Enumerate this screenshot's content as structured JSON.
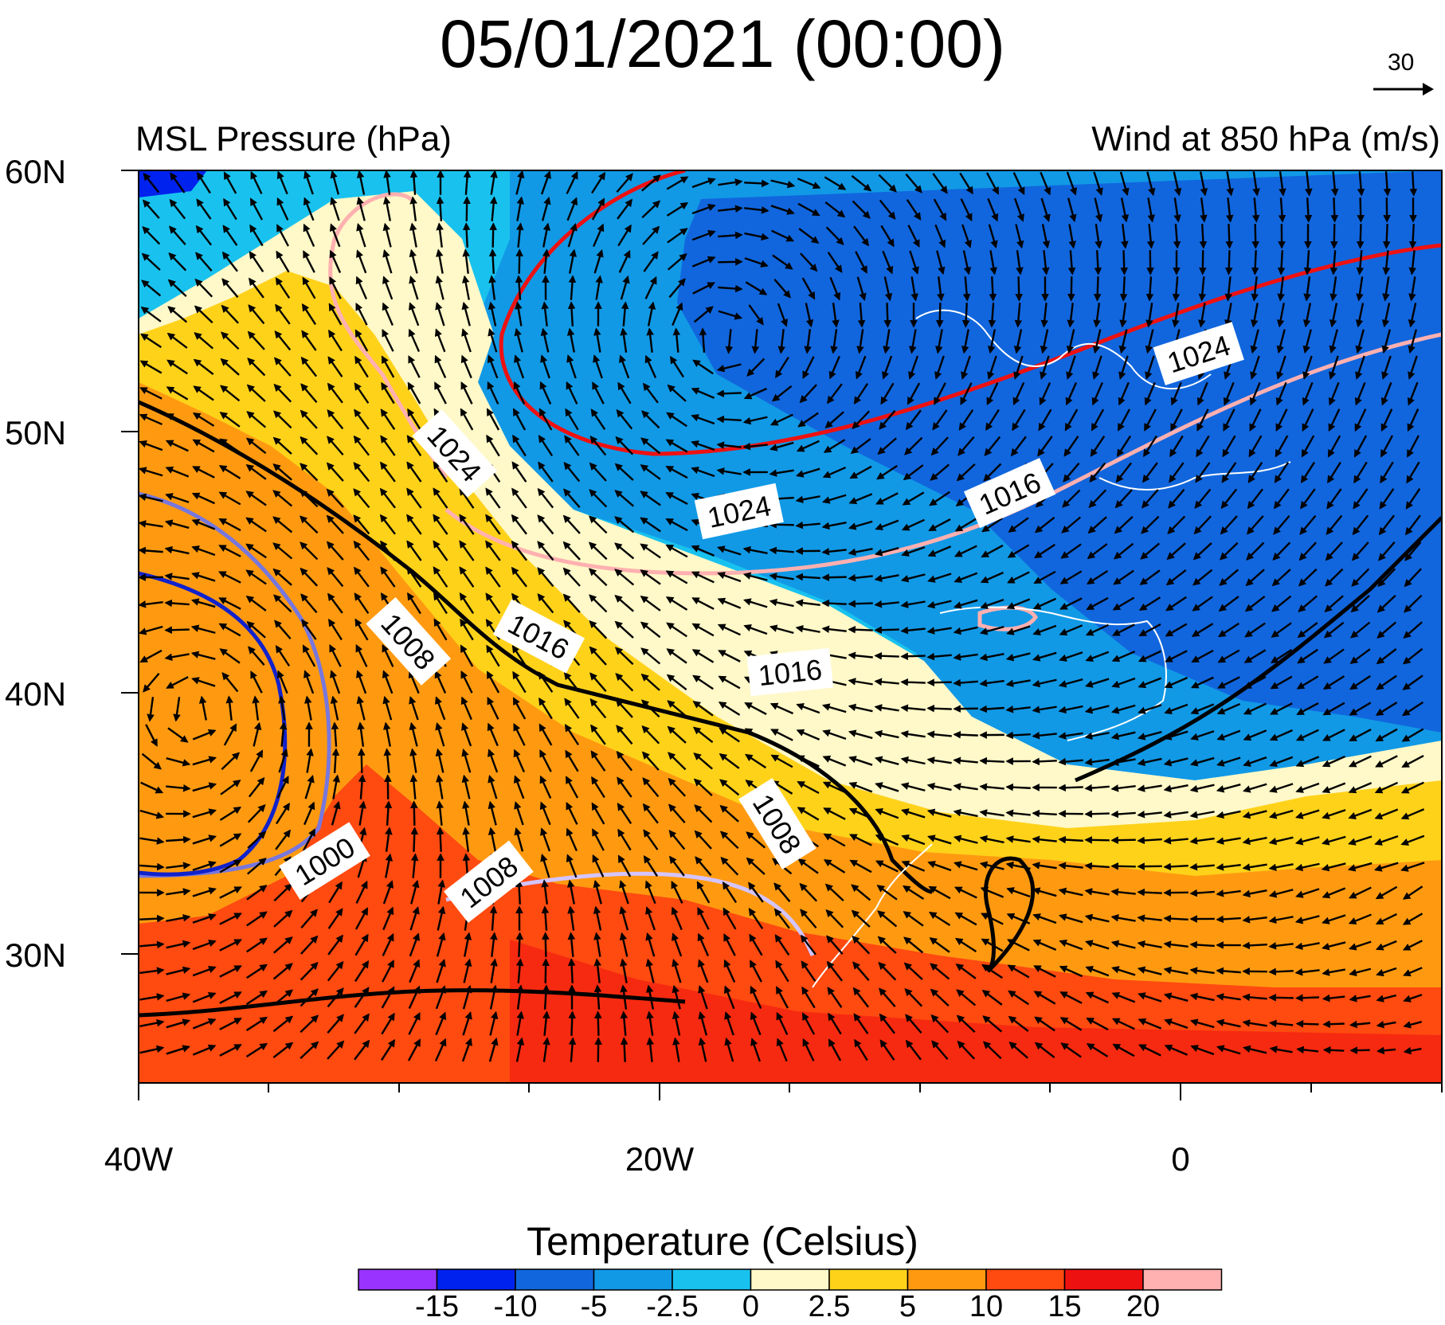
{
  "title": "05/01/2021 (00:00)",
  "left_subtitle": "MSL Pressure (hPa)",
  "right_subtitle": "Wind at 850 hPa (m/s)",
  "reference_vector_label": "30",
  "lat_labels": [
    "60N",
    "50N",
    "40N",
    "30N"
  ],
  "lon_labels": [
    "40W",
    "20W",
    "0"
  ],
  "isobar_labels": [
    "1024",
    "1024",
    "1024",
    "1016",
    "1016",
    "1016",
    "1008",
    "1008",
    "1008",
    "1000"
  ],
  "colorbar": {
    "title": "Temperature (Celsius)",
    "labels": [
      "-15",
      "-10",
      "-5",
      "-2.5",
      "0",
      "2.5",
      "5",
      "10",
      "15",
      "20"
    ],
    "colors": [
      "#9933ff",
      "#0022ee",
      "#1166dd",
      "#1199e6",
      "#19c2ee",
      "#fff8c8",
      "#ffd21a",
      "#ff9a10",
      "#ff4a10",
      "#ee1111",
      "#ffb0b0"
    ]
  },
  "colors": {
    "map_bg": "#19c2ee",
    "isobar_high": "#ee1111",
    "isobar_mid": "#ffb0b0",
    "isobar_low": "#7777dd",
    "isobar_lowest": "#1122cc",
    "isobar_1012": "#000000",
    "coastline": "#ffffff"
  }
}
